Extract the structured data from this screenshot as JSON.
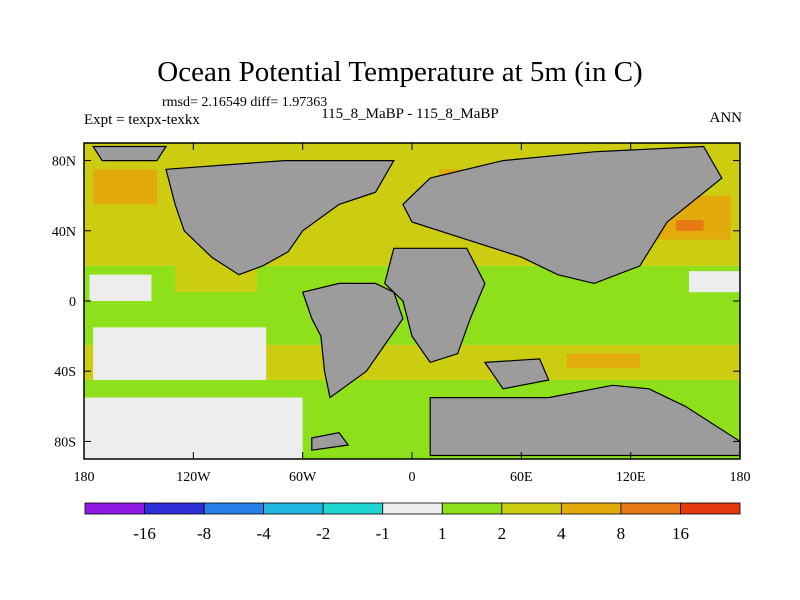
{
  "chart_data": {
    "type": "heatmap",
    "title": "Ocean Potential Temperature at 5m (in C)",
    "stats_label": "rmsd= 2.16549  diff= 1.97363",
    "left_label": "Expt = texpx-texkx",
    "center_label": "115_8_MaBP - 115_8_MaBP",
    "right_label": "ANN",
    "x_ticks": [
      {
        "value": -180,
        "label": "180"
      },
      {
        "value": -120,
        "label": "120W"
      },
      {
        "value": -60,
        "label": "60W"
      },
      {
        "value": 0,
        "label": "0"
      },
      {
        "value": 60,
        "label": "60E"
      },
      {
        "value": 120,
        "label": "120E"
      },
      {
        "value": 180,
        "label": "180"
      }
    ],
    "y_ticks": [
      {
        "value": 80,
        "label": "80N"
      },
      {
        "value": 40,
        "label": "40N"
      },
      {
        "value": 0,
        "label": "0"
      },
      {
        "value": -40,
        "label": "40S"
      },
      {
        "value": -80,
        "label": "80S"
      }
    ],
    "xlim": [
      -180,
      180
    ],
    "ylim": [
      -90,
      90
    ],
    "land_color": "#9c9c9c",
    "colorbar": {
      "colors": [
        "#8f1ae6",
        "#2f2fd9",
        "#2680e8",
        "#21b6e0",
        "#20d6d2",
        "#ededed",
        "#8ee01a",
        "#cccc10",
        "#e3aa0c",
        "#e77814",
        "#e33a12"
      ],
      "labels": [
        "-16",
        "-8",
        "-4",
        "-2",
        "-1",
        "1",
        "2",
        "4",
        "8",
        "16"
      ]
    },
    "fill_regions": [
      {
        "name": "band-warm-north",
        "color": "#cccc10",
        "lon": [
          -180,
          180
        ],
        "lat": [
          20,
          90
        ]
      },
      {
        "name": "band-tropics",
        "color": "#8ee01a",
        "lon": [
          -180,
          180
        ],
        "lat": [
          -25,
          20
        ]
      },
      {
        "name": "band-south-warm",
        "color": "#cccc10",
        "lon": [
          -180,
          180
        ],
        "lat": [
          -45,
          -25
        ]
      },
      {
        "name": "band-southern",
        "color": "#8ee01a",
        "lon": [
          -180,
          180
        ],
        "lat": [
          -90,
          -45
        ]
      },
      {
        "name": "pacific-warm-patch",
        "color": "#cccc10",
        "lon": [
          -130,
          -85
        ],
        "lat": [
          5,
          25
        ]
      },
      {
        "name": "orange-north-atlantic",
        "color": "#e3aa0c",
        "lon": [
          -175,
          -140
        ],
        "lat": [
          55,
          75
        ]
      },
      {
        "name": "orange-arctic",
        "color": "#e3aa0c",
        "lon": [
          15,
          40
        ],
        "lat": [
          60,
          75
        ]
      },
      {
        "name": "orange-siberia",
        "color": "#e3aa0c",
        "lon": [
          130,
          175
        ],
        "lat": [
          35,
          60
        ]
      },
      {
        "name": "hotspot-east",
        "color": "#e77814",
        "lon": [
          145,
          160
        ],
        "lat": [
          40,
          46
        ]
      },
      {
        "name": "orange-south-indian",
        "color": "#e3aa0c",
        "lon": [
          85,
          125
        ],
        "lat": [
          -38,
          -30
        ]
      },
      {
        "name": "white-equatorial-west",
        "color": "#ededed",
        "lon": [
          -177,
          -143
        ],
        "lat": [
          0,
          15
        ]
      },
      {
        "name": "white-east-pacific",
        "color": "#ededed",
        "lon": [
          152,
          180
        ],
        "lat": [
          5,
          17
        ]
      },
      {
        "name": "white-south-pacific",
        "color": "#ededed",
        "lon": [
          -175,
          -80
        ],
        "lat": [
          -45,
          -15
        ]
      },
      {
        "name": "white-antarctic-shelf",
        "color": "#ededed",
        "lon": [
          -180,
          -60
        ],
        "lat": [
          -90,
          -55
        ]
      }
    ],
    "land_masses": [
      {
        "name": "land-north-america",
        "points": [
          [
            -135,
            75
          ],
          [
            -70,
            80
          ],
          [
            -10,
            80
          ],
          [
            -20,
            62
          ],
          [
            -40,
            55
          ],
          [
            -60,
            40
          ],
          [
            -68,
            28
          ],
          [
            -82,
            20
          ],
          [
            -95,
            15
          ],
          [
            -110,
            25
          ],
          [
            -125,
            40
          ],
          [
            -130,
            55
          ]
        ]
      },
      {
        "name": "land-arctic-west",
        "points": [
          [
            -175,
            88
          ],
          [
            -135,
            88
          ],
          [
            -140,
            80
          ],
          [
            -170,
            80
          ]
        ]
      },
      {
        "name": "land-eurasia",
        "points": [
          [
            50,
            80
          ],
          [
            100,
            85
          ],
          [
            160,
            88
          ],
          [
            170,
            70
          ],
          [
            140,
            45
          ],
          [
            125,
            20
          ],
          [
            100,
            10
          ],
          [
            80,
            15
          ],
          [
            60,
            25
          ],
          [
            30,
            35
          ],
          [
            0,
            45
          ],
          [
            -5,
            55
          ],
          [
            10,
            70
          ]
        ]
      },
      {
        "name": "land-south-america",
        "points": [
          [
            -60,
            5
          ],
          [
            -40,
            10
          ],
          [
            -20,
            10
          ],
          [
            -10,
            5
          ],
          [
            -5,
            -10
          ],
          [
            -15,
            -25
          ],
          [
            -25,
            -40
          ],
          [
            -45,
            -55
          ],
          [
            -48,
            -40
          ],
          [
            -50,
            -20
          ],
          [
            -55,
            -10
          ]
        ]
      },
      {
        "name": "land-africa",
        "points": [
          [
            -10,
            30
          ],
          [
            30,
            30
          ],
          [
            40,
            10
          ],
          [
            32,
            -10
          ],
          [
            25,
            -30
          ],
          [
            10,
            -35
          ],
          [
            0,
            -20
          ],
          [
            -5,
            0
          ],
          [
            -15,
            10
          ]
        ]
      },
      {
        "name": "land-australia",
        "points": [
          [
            40,
            -35
          ],
          [
            70,
            -33
          ],
          [
            75,
            -45
          ],
          [
            50,
            -50
          ]
        ]
      },
      {
        "name": "land-antarctica-east",
        "points": [
          [
            10,
            -55
          ],
          [
            50,
            -55
          ],
          [
            75,
            -55
          ],
          [
            110,
            -48
          ],
          [
            130,
            -50
          ],
          [
            150,
            -60
          ],
          [
            180,
            -80
          ],
          [
            180,
            -88
          ],
          [
            10,
            -88
          ]
        ]
      },
      {
        "name": "land-antarctica-west",
        "points": [
          [
            -55,
            -78
          ],
          [
            -40,
            -75
          ],
          [
            -35,
            -82
          ],
          [
            -55,
            -85
          ]
        ]
      }
    ]
  }
}
